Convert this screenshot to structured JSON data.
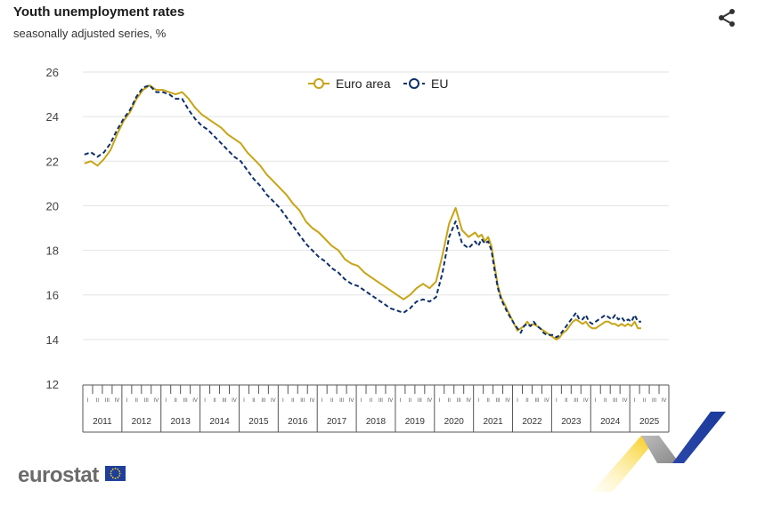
{
  "header": {
    "title": "Youth unemployment rates",
    "subtitle": "seasonally adjusted series, %"
  },
  "icons": {
    "share": "share-icon"
  },
  "footer": {
    "brand": "eurostat"
  },
  "colors": {
    "euro_area": "#c8a415",
    "eu": "#0e2f6b",
    "grid": "#e3e3e3",
    "axis": "#555555"
  },
  "chart_data": {
    "type": "line",
    "title": "Youth unemployment rates",
    "subtitle": "seasonally adjusted series, %",
    "ylim": [
      12,
      26
    ],
    "yticks": [
      12,
      14,
      16,
      18,
      20,
      22,
      24,
      26
    ],
    "grid": true,
    "legend": "top-center",
    "x_years": [
      "2011",
      "2012",
      "2013",
      "2014",
      "2015",
      "2016",
      "2017",
      "2018",
      "2019",
      "2020",
      "2021",
      "2022",
      "2023",
      "2024",
      "2025"
    ],
    "x_quarters": [
      "I",
      "II",
      "III",
      "IV"
    ],
    "series": [
      {
        "name": "Euro area",
        "style": "solid",
        "points": [
          [
            "2011-01",
            21.9
          ],
          [
            "2011-03",
            22.0
          ],
          [
            "2011-05",
            21.8
          ],
          [
            "2011-07",
            22.1
          ],
          [
            "2011-09",
            22.5
          ],
          [
            "2011-11",
            23.2
          ],
          [
            "2012-01",
            23.8
          ],
          [
            "2012-03",
            24.2
          ],
          [
            "2012-05",
            24.8
          ],
          [
            "2012-07",
            25.2
          ],
          [
            "2012-09",
            25.4
          ],
          [
            "2012-11",
            25.2
          ],
          [
            "2013-01",
            25.2
          ],
          [
            "2013-03",
            25.1
          ],
          [
            "2013-05",
            25.0
          ],
          [
            "2013-07",
            25.1
          ],
          [
            "2013-09",
            24.8
          ],
          [
            "2013-11",
            24.4
          ],
          [
            "2014-01",
            24.1
          ],
          [
            "2014-03",
            23.9
          ],
          [
            "2014-05",
            23.7
          ],
          [
            "2014-07",
            23.5
          ],
          [
            "2014-09",
            23.2
          ],
          [
            "2014-11",
            23.0
          ],
          [
            "2015-01",
            22.8
          ],
          [
            "2015-03",
            22.4
          ],
          [
            "2015-05",
            22.1
          ],
          [
            "2015-07",
            21.8
          ],
          [
            "2015-09",
            21.4
          ],
          [
            "2015-11",
            21.1
          ],
          [
            "2016-01",
            20.8
          ],
          [
            "2016-03",
            20.5
          ],
          [
            "2016-05",
            20.1
          ],
          [
            "2016-07",
            19.8
          ],
          [
            "2016-09",
            19.3
          ],
          [
            "2016-11",
            19.0
          ],
          [
            "2017-01",
            18.8
          ],
          [
            "2017-03",
            18.5
          ],
          [
            "2017-05",
            18.2
          ],
          [
            "2017-07",
            18.0
          ],
          [
            "2017-09",
            17.6
          ],
          [
            "2017-11",
            17.4
          ],
          [
            "2018-01",
            17.3
          ],
          [
            "2018-03",
            17.0
          ],
          [
            "2018-05",
            16.8
          ],
          [
            "2018-07",
            16.6
          ],
          [
            "2018-09",
            16.4
          ],
          [
            "2018-11",
            16.2
          ],
          [
            "2019-01",
            16.0
          ],
          [
            "2019-03",
            15.8
          ],
          [
            "2019-05",
            16.0
          ],
          [
            "2019-07",
            16.3
          ],
          [
            "2019-09",
            16.5
          ],
          [
            "2019-11",
            16.3
          ],
          [
            "2020-01",
            16.6
          ],
          [
            "2020-03",
            17.8
          ],
          [
            "2020-05",
            19.2
          ],
          [
            "2020-07",
            19.9
          ],
          [
            "2020-08",
            19.4
          ],
          [
            "2020-09",
            18.9
          ],
          [
            "2020-11",
            18.6
          ],
          [
            "2021-01",
            18.8
          ],
          [
            "2021-02",
            18.6
          ],
          [
            "2021-03",
            18.7
          ],
          [
            "2021-04",
            18.4
          ],
          [
            "2021-05",
            18.6
          ],
          [
            "2021-06",
            18.2
          ],
          [
            "2021-07",
            17.3
          ],
          [
            "2021-08",
            16.4
          ],
          [
            "2021-09",
            15.9
          ],
          [
            "2021-11",
            15.3
          ],
          [
            "2022-01",
            14.7
          ],
          [
            "2022-02",
            14.4
          ],
          [
            "2022-03",
            14.5
          ],
          [
            "2022-04",
            14.6
          ],
          [
            "2022-05",
            14.8
          ],
          [
            "2022-06",
            14.6
          ],
          [
            "2022-07",
            14.7
          ],
          [
            "2022-08",
            14.6
          ],
          [
            "2022-09",
            14.5
          ],
          [
            "2022-10",
            14.4
          ],
          [
            "2022-11",
            14.3
          ],
          [
            "2022-12",
            14.2
          ],
          [
            "2023-01",
            14.1
          ],
          [
            "2023-02",
            14.0
          ],
          [
            "2023-03",
            14.1
          ],
          [
            "2023-04",
            14.3
          ],
          [
            "2023-05",
            14.4
          ],
          [
            "2023-06",
            14.6
          ],
          [
            "2023-07",
            14.8
          ],
          [
            "2023-08",
            14.9
          ],
          [
            "2023-09",
            14.8
          ],
          [
            "2023-10",
            14.7
          ],
          [
            "2023-11",
            14.8
          ],
          [
            "2023-12",
            14.6
          ],
          [
            "2024-01",
            14.5
          ],
          [
            "2024-02",
            14.5
          ],
          [
            "2024-03",
            14.6
          ],
          [
            "2024-04",
            14.7
          ],
          [
            "2024-05",
            14.8
          ],
          [
            "2024-06",
            14.8
          ],
          [
            "2024-07",
            14.7
          ],
          [
            "2024-08",
            14.7
          ],
          [
            "2024-09",
            14.6
          ],
          [
            "2024-10",
            14.7
          ],
          [
            "2024-11",
            14.6
          ],
          [
            "2024-12",
            14.7
          ],
          [
            "2025-01",
            14.6
          ],
          [
            "2025-02",
            14.8
          ],
          [
            "2025-03",
            14.5
          ],
          [
            "2025-04",
            14.5
          ]
        ]
      },
      {
        "name": "EU",
        "style": "dashed",
        "points": [
          [
            "2011-01",
            22.3
          ],
          [
            "2011-03",
            22.4
          ],
          [
            "2011-05",
            22.2
          ],
          [
            "2011-07",
            22.4
          ],
          [
            "2011-09",
            22.8
          ],
          [
            "2011-11",
            23.4
          ],
          [
            "2012-01",
            23.9
          ],
          [
            "2012-03",
            24.3
          ],
          [
            "2012-05",
            24.9
          ],
          [
            "2012-07",
            25.3
          ],
          [
            "2012-09",
            25.4
          ],
          [
            "2012-11",
            25.1
          ],
          [
            "2013-01",
            25.1
          ],
          [
            "2013-03",
            25.0
          ],
          [
            "2013-05",
            24.8
          ],
          [
            "2013-07",
            24.8
          ],
          [
            "2013-09",
            24.3
          ],
          [
            "2013-11",
            23.9
          ],
          [
            "2014-01",
            23.6
          ],
          [
            "2014-03",
            23.4
          ],
          [
            "2014-05",
            23.1
          ],
          [
            "2014-07",
            22.8
          ],
          [
            "2014-09",
            22.5
          ],
          [
            "2014-11",
            22.2
          ],
          [
            "2015-01",
            22.0
          ],
          [
            "2015-03",
            21.6
          ],
          [
            "2015-05",
            21.2
          ],
          [
            "2015-07",
            20.9
          ],
          [
            "2015-09",
            20.5
          ],
          [
            "2015-11",
            20.2
          ],
          [
            "2016-01",
            19.9
          ],
          [
            "2016-03",
            19.5
          ],
          [
            "2016-05",
            19.1
          ],
          [
            "2016-07",
            18.7
          ],
          [
            "2016-09",
            18.3
          ],
          [
            "2016-11",
            18.0
          ],
          [
            "2017-01",
            17.7
          ],
          [
            "2017-03",
            17.5
          ],
          [
            "2017-05",
            17.2
          ],
          [
            "2017-07",
            17.0
          ],
          [
            "2017-09",
            16.7
          ],
          [
            "2017-11",
            16.5
          ],
          [
            "2018-01",
            16.4
          ],
          [
            "2018-03",
            16.2
          ],
          [
            "2018-05",
            16.0
          ],
          [
            "2018-07",
            15.8
          ],
          [
            "2018-09",
            15.6
          ],
          [
            "2018-11",
            15.4
          ],
          [
            "2019-01",
            15.3
          ],
          [
            "2019-03",
            15.2
          ],
          [
            "2019-05",
            15.4
          ],
          [
            "2019-07",
            15.7
          ],
          [
            "2019-09",
            15.8
          ],
          [
            "2019-11",
            15.7
          ],
          [
            "2020-01",
            15.9
          ],
          [
            "2020-03",
            17.0
          ],
          [
            "2020-05",
            18.6
          ],
          [
            "2020-07",
            19.3
          ],
          [
            "2020-08",
            18.8
          ],
          [
            "2020-09",
            18.3
          ],
          [
            "2020-11",
            18.1
          ],
          [
            "2021-01",
            18.4
          ],
          [
            "2021-02",
            18.2
          ],
          [
            "2021-03",
            18.5
          ],
          [
            "2021-04",
            18.3
          ],
          [
            "2021-05",
            18.4
          ],
          [
            "2021-06",
            18.0
          ],
          [
            "2021-07",
            17.1
          ],
          [
            "2021-08",
            16.3
          ],
          [
            "2021-09",
            15.8
          ],
          [
            "2021-11",
            15.2
          ],
          [
            "2022-01",
            14.7
          ],
          [
            "2022-02",
            14.5
          ],
          [
            "2022-03",
            14.3
          ],
          [
            "2022-04",
            14.6
          ],
          [
            "2022-05",
            14.7
          ],
          [
            "2022-06",
            14.6
          ],
          [
            "2022-07",
            14.8
          ],
          [
            "2022-08",
            14.6
          ],
          [
            "2022-09",
            14.5
          ],
          [
            "2022-10",
            14.3
          ],
          [
            "2022-11",
            14.2
          ],
          [
            "2022-12",
            14.2
          ],
          [
            "2023-01",
            14.2
          ],
          [
            "2023-02",
            14.1
          ],
          [
            "2023-03",
            14.2
          ],
          [
            "2023-04",
            14.4
          ],
          [
            "2023-05",
            14.6
          ],
          [
            "2023-06",
            14.8
          ],
          [
            "2023-07",
            15.0
          ],
          [
            "2023-08",
            15.2
          ],
          [
            "2023-09",
            14.9
          ],
          [
            "2023-10",
            14.9
          ],
          [
            "2023-11",
            15.1
          ],
          [
            "2023-12",
            14.8
          ],
          [
            "2024-01",
            14.7
          ],
          [
            "2024-02",
            14.8
          ],
          [
            "2024-03",
            14.9
          ],
          [
            "2024-04",
            15.0
          ],
          [
            "2024-05",
            15.1
          ],
          [
            "2024-06",
            15.0
          ],
          [
            "2024-07",
            14.9
          ],
          [
            "2024-08",
            15.1
          ],
          [
            "2024-09",
            14.9
          ],
          [
            "2024-10",
            15.0
          ],
          [
            "2024-11",
            14.8
          ],
          [
            "2024-12",
            14.9
          ],
          [
            "2025-01",
            14.8
          ],
          [
            "2025-02",
            15.1
          ],
          [
            "2025-03",
            14.8
          ],
          [
            "2025-04",
            14.8
          ]
        ]
      }
    ]
  }
}
